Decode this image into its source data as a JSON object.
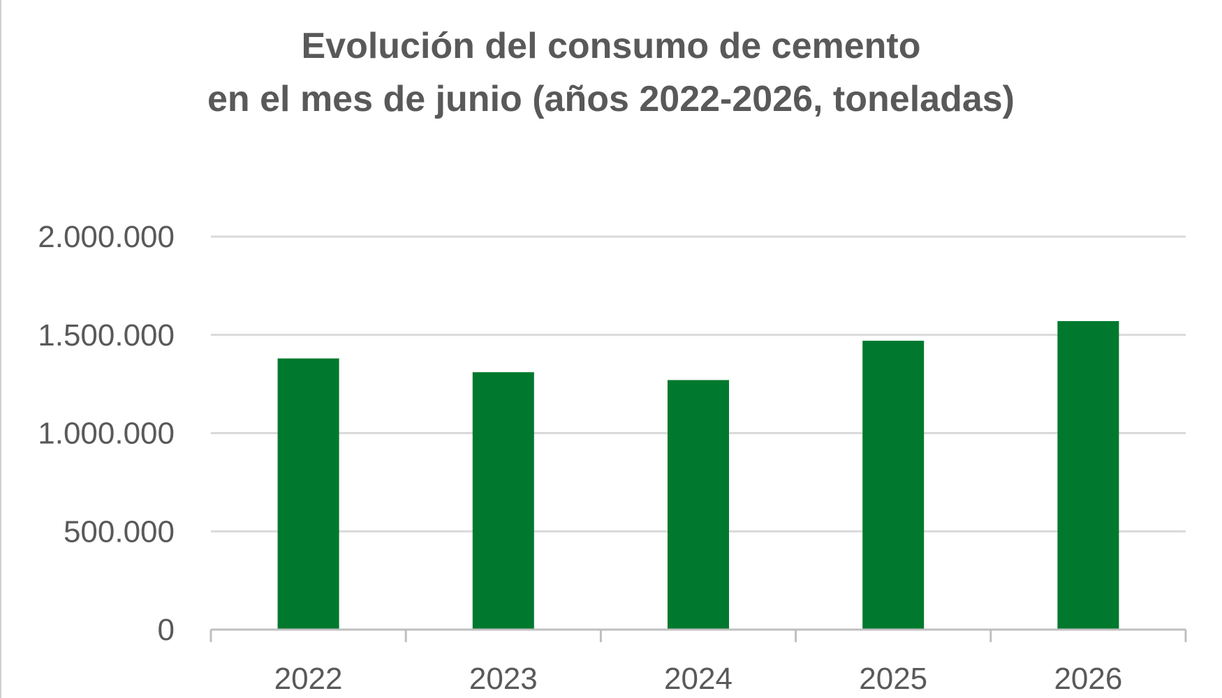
{
  "chart_data": {
    "type": "bar",
    "title": "Evolución del consumo de cemento en el mes de junio (años 2022-2026, toneladas)",
    "title_lines": [
      "Evolución del consumo de cemento",
      "en el mes de junio (años 2022-2026, toneladas)"
    ],
    "categories": [
      "2022",
      "2023",
      "2024",
      "2025",
      "2026"
    ],
    "values": [
      1380000,
      1310000,
      1270000,
      1470000,
      1570000
    ],
    "xlabel": "",
    "ylabel": "",
    "ylim": [
      0,
      2000000
    ],
    "yticks": [
      0,
      500000,
      1000000,
      1500000,
      2000000
    ],
    "ytick_labels": [
      "0",
      "500.000",
      "1.000.000",
      "1.500.000",
      "2.000.000"
    ],
    "grid": true,
    "legend": "none",
    "colors": {
      "bar": "#00782d",
      "grid": "#d9d9d9",
      "axis": "#bfbfbf",
      "text": "#595959"
    }
  }
}
